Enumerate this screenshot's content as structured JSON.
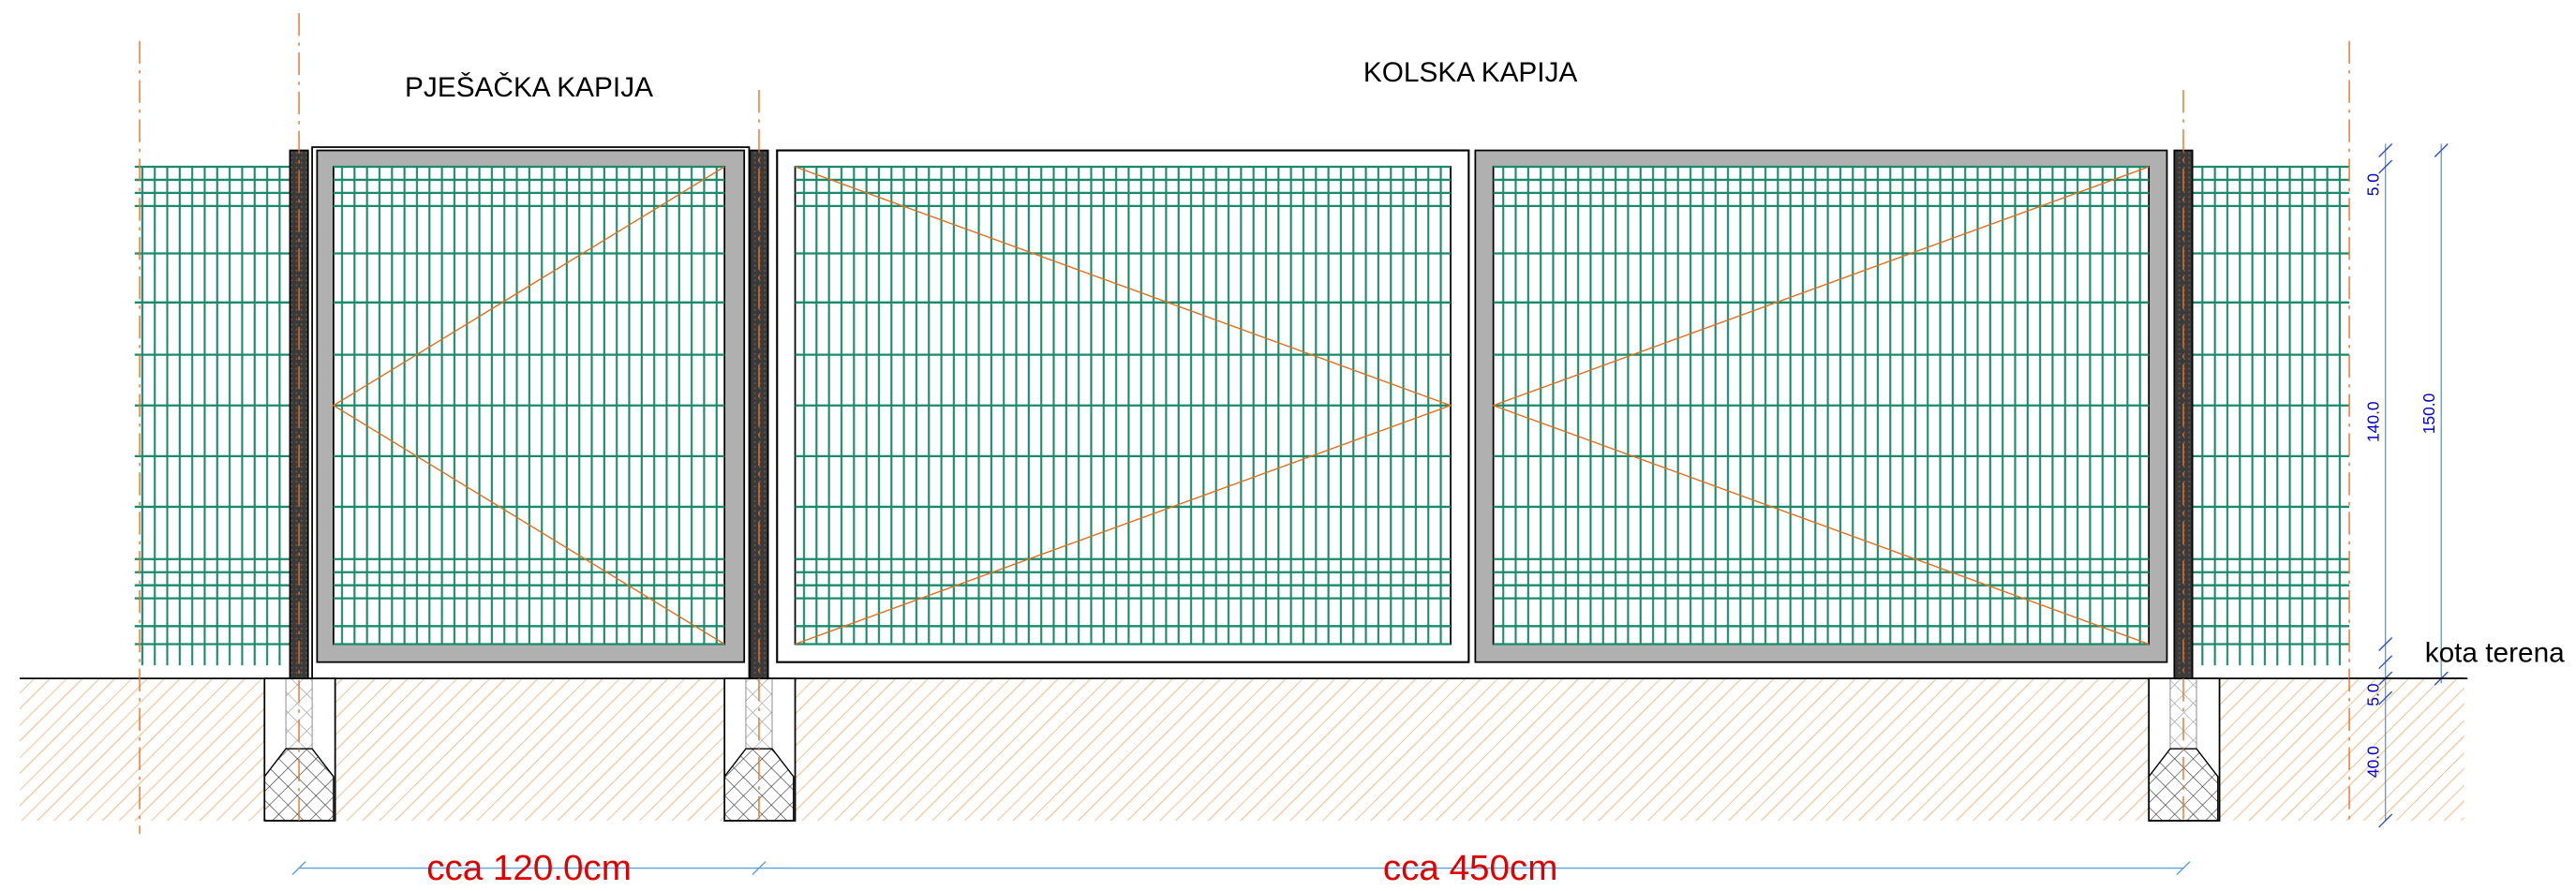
{
  "titles": {
    "pedestrian_gate": "PJEŠAČKA KAPIJA",
    "vehicle_gate": "KOLSKA  KAPIJA"
  },
  "right_dimensions": {
    "top_rail": "5.0",
    "panel": "140.0",
    "total": "150.0",
    "above_ground": "5.0",
    "foundation": "40.0"
  },
  "ground_label": "kota terena",
  "bottom_dimensions": {
    "pedestrian_width": "cca 120.0cm",
    "vehicle_width": "cca 450cm"
  }
}
